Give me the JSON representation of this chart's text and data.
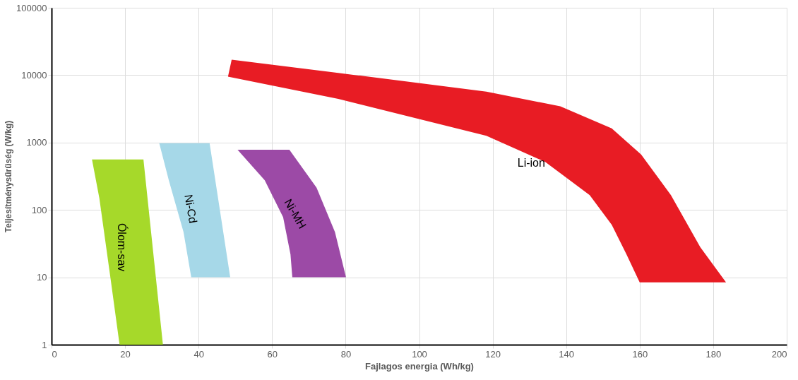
{
  "chart_data": {
    "type": "area",
    "xlabel": "Fajlagos energia (Wh/kg)",
    "ylabel": "Teljesítménysűrűség (W/kg)",
    "xlim": [
      0,
      200
    ],
    "xticks": [
      0,
      20,
      40,
      60,
      80,
      100,
      120,
      140,
      160,
      180,
      200
    ],
    "ylim": [
      1,
      100000
    ],
    "yticks": [
      1,
      10,
      100,
      1000,
      10000,
      100000
    ],
    "log": "y",
    "grid": true,
    "series": [
      {
        "name": "Ólom-sav",
        "color": "#a6d92a",
        "x": [
          11,
          25,
          30.3,
          18.5,
          16,
          13
        ],
        "values": [
          560,
          560,
          1,
          1,
          10,
          150
        ]
      },
      {
        "name": "Ni-Cd",
        "color": "#a6d8e8",
        "x": [
          29.3,
          43,
          48.6,
          38,
          35.9,
          31.9
        ],
        "values": [
          980,
          980,
          10,
          10,
          47,
          275
        ]
      },
      {
        "name": "Ni-MH",
        "color": "#9c4aa6",
        "x": [
          50.6,
          64.7,
          72.1,
          77.1,
          80.1,
          65.5,
          65,
          63,
          58
        ],
        "values": [
          780,
          780,
          214,
          47,
          10,
          10,
          22,
          78,
          275
        ]
      },
      {
        "name": "Li-ion",
        "color": "#e81c24",
        "x": [
          49,
          78,
          118.3,
          138.4,
          152.4,
          160.4,
          168.5,
          176.5,
          183.5,
          160,
          156.4,
          152.4,
          146.4,
          134.3,
          118.3,
          78,
          48
        ],
        "values": [
          17000,
          10800,
          5700,
          3450,
          1620,
          665,
          166,
          28,
          8.4,
          8.4,
          22,
          60,
          166,
          516,
          1260,
          4450,
          9500
        ]
      }
    ]
  }
}
